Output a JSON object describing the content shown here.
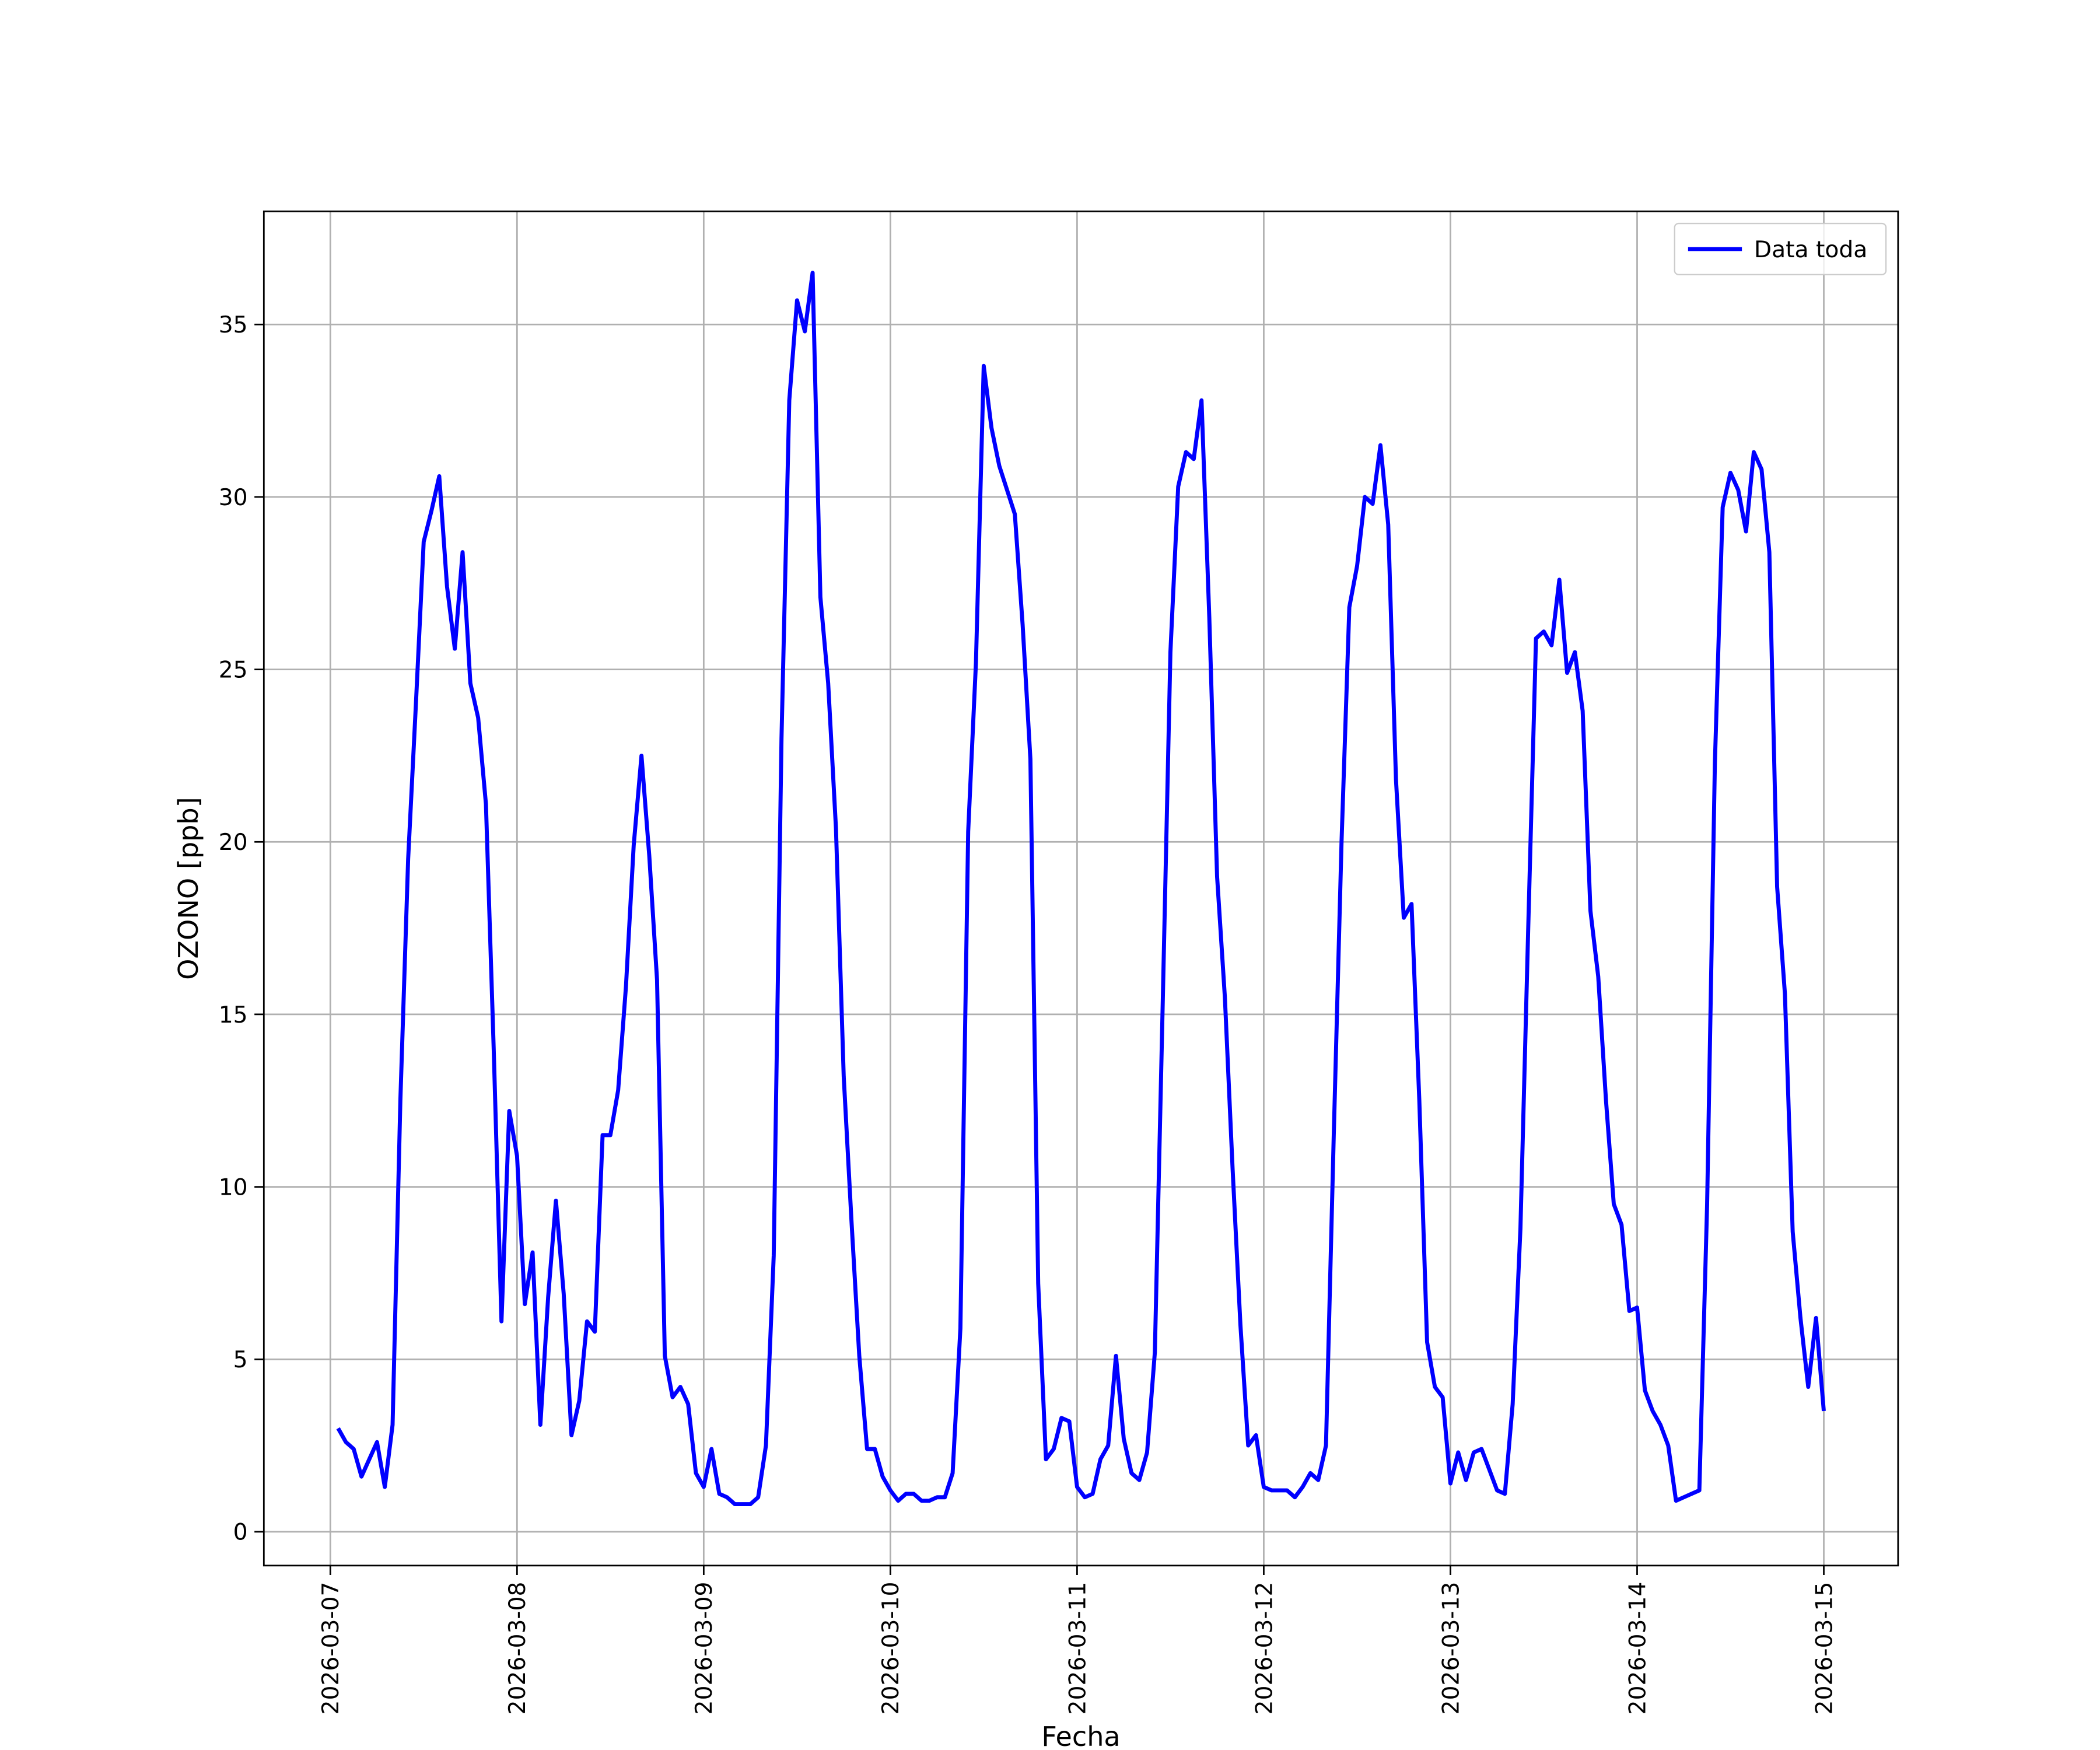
{
  "chart_data": {
    "type": "line",
    "xlabel": "Fecha",
    "ylabel": "OZONO [ppb]",
    "x": [
      "2026-03-07 01:00",
      "2026-03-07 02:00",
      "2026-03-07 03:00",
      "2026-03-07 04:00",
      "2026-03-07 05:00",
      "2026-03-07 06:00",
      "2026-03-07 07:00",
      "2026-03-07 08:00",
      "2026-03-07 09:00",
      "2026-03-07 10:00",
      "2026-03-07 11:00",
      "2026-03-07 12:00",
      "2026-03-07 13:00",
      "2026-03-07 14:00",
      "2026-03-07 15:00",
      "2026-03-07 16:00",
      "2026-03-07 17:00",
      "2026-03-07 18:00",
      "2026-03-07 19:00",
      "2026-03-07 20:00",
      "2026-03-07 21:00",
      "2026-03-07 22:00",
      "2026-03-07 23:00",
      "2026-03-08 00:00",
      "2026-03-08 01:00",
      "2026-03-08 02:00",
      "2026-03-08 03:00",
      "2026-03-08 04:00",
      "2026-03-08 05:00",
      "2026-03-08 06:00",
      "2026-03-08 07:00",
      "2026-03-08 08:00",
      "2026-03-08 09:00",
      "2026-03-08 10:00",
      "2026-03-08 11:00",
      "2026-03-08 12:00",
      "2026-03-08 13:00",
      "2026-03-08 14:00",
      "2026-03-08 15:00",
      "2026-03-08 16:00",
      "2026-03-08 17:00",
      "2026-03-08 18:00",
      "2026-03-08 19:00",
      "2026-03-08 20:00",
      "2026-03-08 21:00",
      "2026-03-08 22:00",
      "2026-03-08 23:00",
      "2026-03-09 00:00",
      "2026-03-09 01:00",
      "2026-03-09 02:00",
      "2026-03-09 03:00",
      "2026-03-09 04:00",
      "2026-03-09 05:00",
      "2026-03-09 06:00",
      "2026-03-09 07:00",
      "2026-03-09 08:00",
      "2026-03-09 09:00",
      "2026-03-09 10:00",
      "2026-03-09 11:00",
      "2026-03-09 12:00",
      "2026-03-09 13:00",
      "2026-03-09 14:00",
      "2026-03-09 15:00",
      "2026-03-09 16:00",
      "2026-03-09 17:00",
      "2026-03-09 18:00",
      "2026-03-09 19:00",
      "2026-03-09 20:00",
      "2026-03-09 21:00",
      "2026-03-09 22:00",
      "2026-03-09 23:00",
      "2026-03-10 00:00",
      "2026-03-10 01:00",
      "2026-03-10 02:00",
      "2026-03-10 03:00",
      "2026-03-10 04:00",
      "2026-03-10 05:00",
      "2026-03-10 06:00",
      "2026-03-10 07:00",
      "2026-03-10 08:00",
      "2026-03-10 09:00",
      "2026-03-10 10:00",
      "2026-03-10 11:00",
      "2026-03-10 12:00",
      "2026-03-10 13:00",
      "2026-03-10 14:00",
      "2026-03-10 15:00",
      "2026-03-10 16:00",
      "2026-03-10 17:00",
      "2026-03-10 18:00",
      "2026-03-10 19:00",
      "2026-03-10 20:00",
      "2026-03-10 21:00",
      "2026-03-10 22:00",
      "2026-03-10 23:00",
      "2026-03-11 00:00",
      "2026-03-11 01:00",
      "2026-03-11 02:00",
      "2026-03-11 03:00",
      "2026-03-11 04:00",
      "2026-03-11 05:00",
      "2026-03-11 06:00",
      "2026-03-11 07:00",
      "2026-03-11 08:00",
      "2026-03-11 09:00",
      "2026-03-11 10:00",
      "2026-03-11 11:00",
      "2026-03-11 12:00",
      "2026-03-11 13:00",
      "2026-03-11 14:00",
      "2026-03-11 15:00",
      "2026-03-11 16:00",
      "2026-03-11 17:00",
      "2026-03-11 18:00",
      "2026-03-11 19:00",
      "2026-03-11 20:00",
      "2026-03-11 21:00",
      "2026-03-11 22:00",
      "2026-03-11 23:00",
      "2026-03-12 00:00",
      "2026-03-12 01:00",
      "2026-03-12 02:00",
      "2026-03-12 03:00",
      "2026-03-12 04:00",
      "2026-03-12 05:00",
      "2026-03-12 06:00",
      "2026-03-12 07:00",
      "2026-03-12 08:00",
      "2026-03-12 09:00",
      "2026-03-12 10:00",
      "2026-03-12 11:00",
      "2026-03-12 12:00",
      "2026-03-12 13:00",
      "2026-03-12 14:00",
      "2026-03-12 15:00",
      "2026-03-12 16:00",
      "2026-03-12 17:00",
      "2026-03-12 18:00",
      "2026-03-12 19:00",
      "2026-03-12 20:00",
      "2026-03-12 21:00",
      "2026-03-12 22:00",
      "2026-03-12 23:00",
      "2026-03-13 00:00",
      "2026-03-13 01:00",
      "2026-03-13 02:00",
      "2026-03-13 03:00",
      "2026-03-13 04:00",
      "2026-03-13 05:00",
      "2026-03-13 06:00",
      "2026-03-13 07:00",
      "2026-03-13 08:00",
      "2026-03-13 09:00",
      "2026-03-13 10:00",
      "2026-03-13 11:00",
      "2026-03-13 12:00",
      "2026-03-13 13:00",
      "2026-03-13 14:00",
      "2026-03-13 15:00",
      "2026-03-13 16:00",
      "2026-03-13 17:00",
      "2026-03-13 18:00",
      "2026-03-13 19:00",
      "2026-03-13 20:00",
      "2026-03-13 21:00",
      "2026-03-13 22:00",
      "2026-03-13 23:00",
      "2026-03-14 00:00",
      "2026-03-14 01:00",
      "2026-03-14 02:00",
      "2026-03-14 03:00",
      "2026-03-14 04:00",
      "2026-03-14 05:00",
      "2026-03-14 06:00",
      "2026-03-14 07:00",
      "2026-03-14 08:00",
      "2026-03-14 09:00",
      "2026-03-14 10:00",
      "2026-03-14 11:00",
      "2026-03-14 12:00",
      "2026-03-14 13:00",
      "2026-03-14 14:00",
      "2026-03-14 15:00",
      "2026-03-14 16:00",
      "2026-03-14 17:00",
      "2026-03-14 18:00",
      "2026-03-14 19:00",
      "2026-03-14 20:00",
      "2026-03-14 21:00",
      "2026-03-14 22:00",
      "2026-03-14 23:00",
      "2026-03-15 00:00"
    ],
    "series": [
      {
        "name": "Data toda",
        "color": "#0000ff",
        "values": [
          3.0,
          2.6,
          2.4,
          1.6,
          2.1,
          2.6,
          1.3,
          3.1,
          12.5,
          19.5,
          24.0,
          28.7,
          29.6,
          30.6,
          27.4,
          25.6,
          28.4,
          24.6,
          23.6,
          21.1,
          14.0,
          6.1,
          12.2,
          10.9,
          6.6,
          8.1,
          3.1,
          6.8,
          9.6,
          6.9,
          2.8,
          3.8,
          6.1,
          5.8,
          11.5,
          11.5,
          12.8,
          15.8,
          19.9,
          22.5,
          19.6,
          16.0,
          5.1,
          3.9,
          4.2,
          3.7,
          1.7,
          1.3,
          2.4,
          1.1,
          1.0,
          0.8,
          0.8,
          0.8,
          1.0,
          2.5,
          8.0,
          23.0,
          32.8,
          35.7,
          34.8,
          36.5,
          27.1,
          24.6,
          20.4,
          13.2,
          9.0,
          5.1,
          2.4,
          2.4,
          1.6,
          1.2,
          0.9,
          1.1,
          1.1,
          0.9,
          0.9,
          1.0,
          1.0,
          1.7,
          5.9,
          20.3,
          25.2,
          33.8,
          32.0,
          30.9,
          30.2,
          29.5,
          26.3,
          22.4,
          7.2,
          2.1,
          2.4,
          3.3,
          3.2,
          1.3,
          1.0,
          1.1,
          2.1,
          2.5,
          5.1,
          2.7,
          1.7,
          1.5,
          2.3,
          5.2,
          15.2,
          25.5,
          30.3,
          31.3,
          31.1,
          32.8,
          26.5,
          19.0,
          15.5,
          10.5,
          6.0,
          2.5,
          2.8,
          1.3,
          1.2,
          1.2,
          1.2,
          1.0,
          1.3,
          1.7,
          1.5,
          2.5,
          11.5,
          20.0,
          26.8,
          28.0,
          30.0,
          29.8,
          31.5,
          29.2,
          21.8,
          17.8,
          18.2,
          12.5,
          5.5,
          4.2,
          3.9,
          1.4,
          2.3,
          1.5,
          2.3,
          2.4,
          1.8,
          1.2,
          1.1,
          3.7,
          8.8,
          17.5,
          25.9,
          26.1,
          25.7,
          27.6,
          24.9,
          25.5,
          23.8,
          18.0,
          16.1,
          12.5,
          9.5,
          8.9,
          6.4,
          6.5,
          4.1,
          3.5,
          3.1,
          2.5,
          0.9,
          1.0,
          1.1,
          1.2,
          9.5,
          22.3,
          29.7,
          30.7,
          30.2,
          29.0,
          31.3,
          30.8,
          28.4,
          18.7,
          15.6,
          8.7,
          6.2,
          4.2,
          6.2,
          3.5
        ]
      }
    ],
    "xlim": [
      "2026-03-06 15:27",
      "2026-03-15 09:33"
    ],
    "xticks": [
      "2026-03-07",
      "2026-03-08",
      "2026-03-09",
      "2026-03-10",
      "2026-03-11",
      "2026-03-12",
      "2026-03-13",
      "2026-03-14",
      "2026-03-15"
    ],
    "ylim": [
      -0.98,
      38.28
    ],
    "yticks": [
      0,
      5,
      10,
      15,
      20,
      25,
      30,
      35
    ],
    "grid": true,
    "legend": "upper right"
  }
}
